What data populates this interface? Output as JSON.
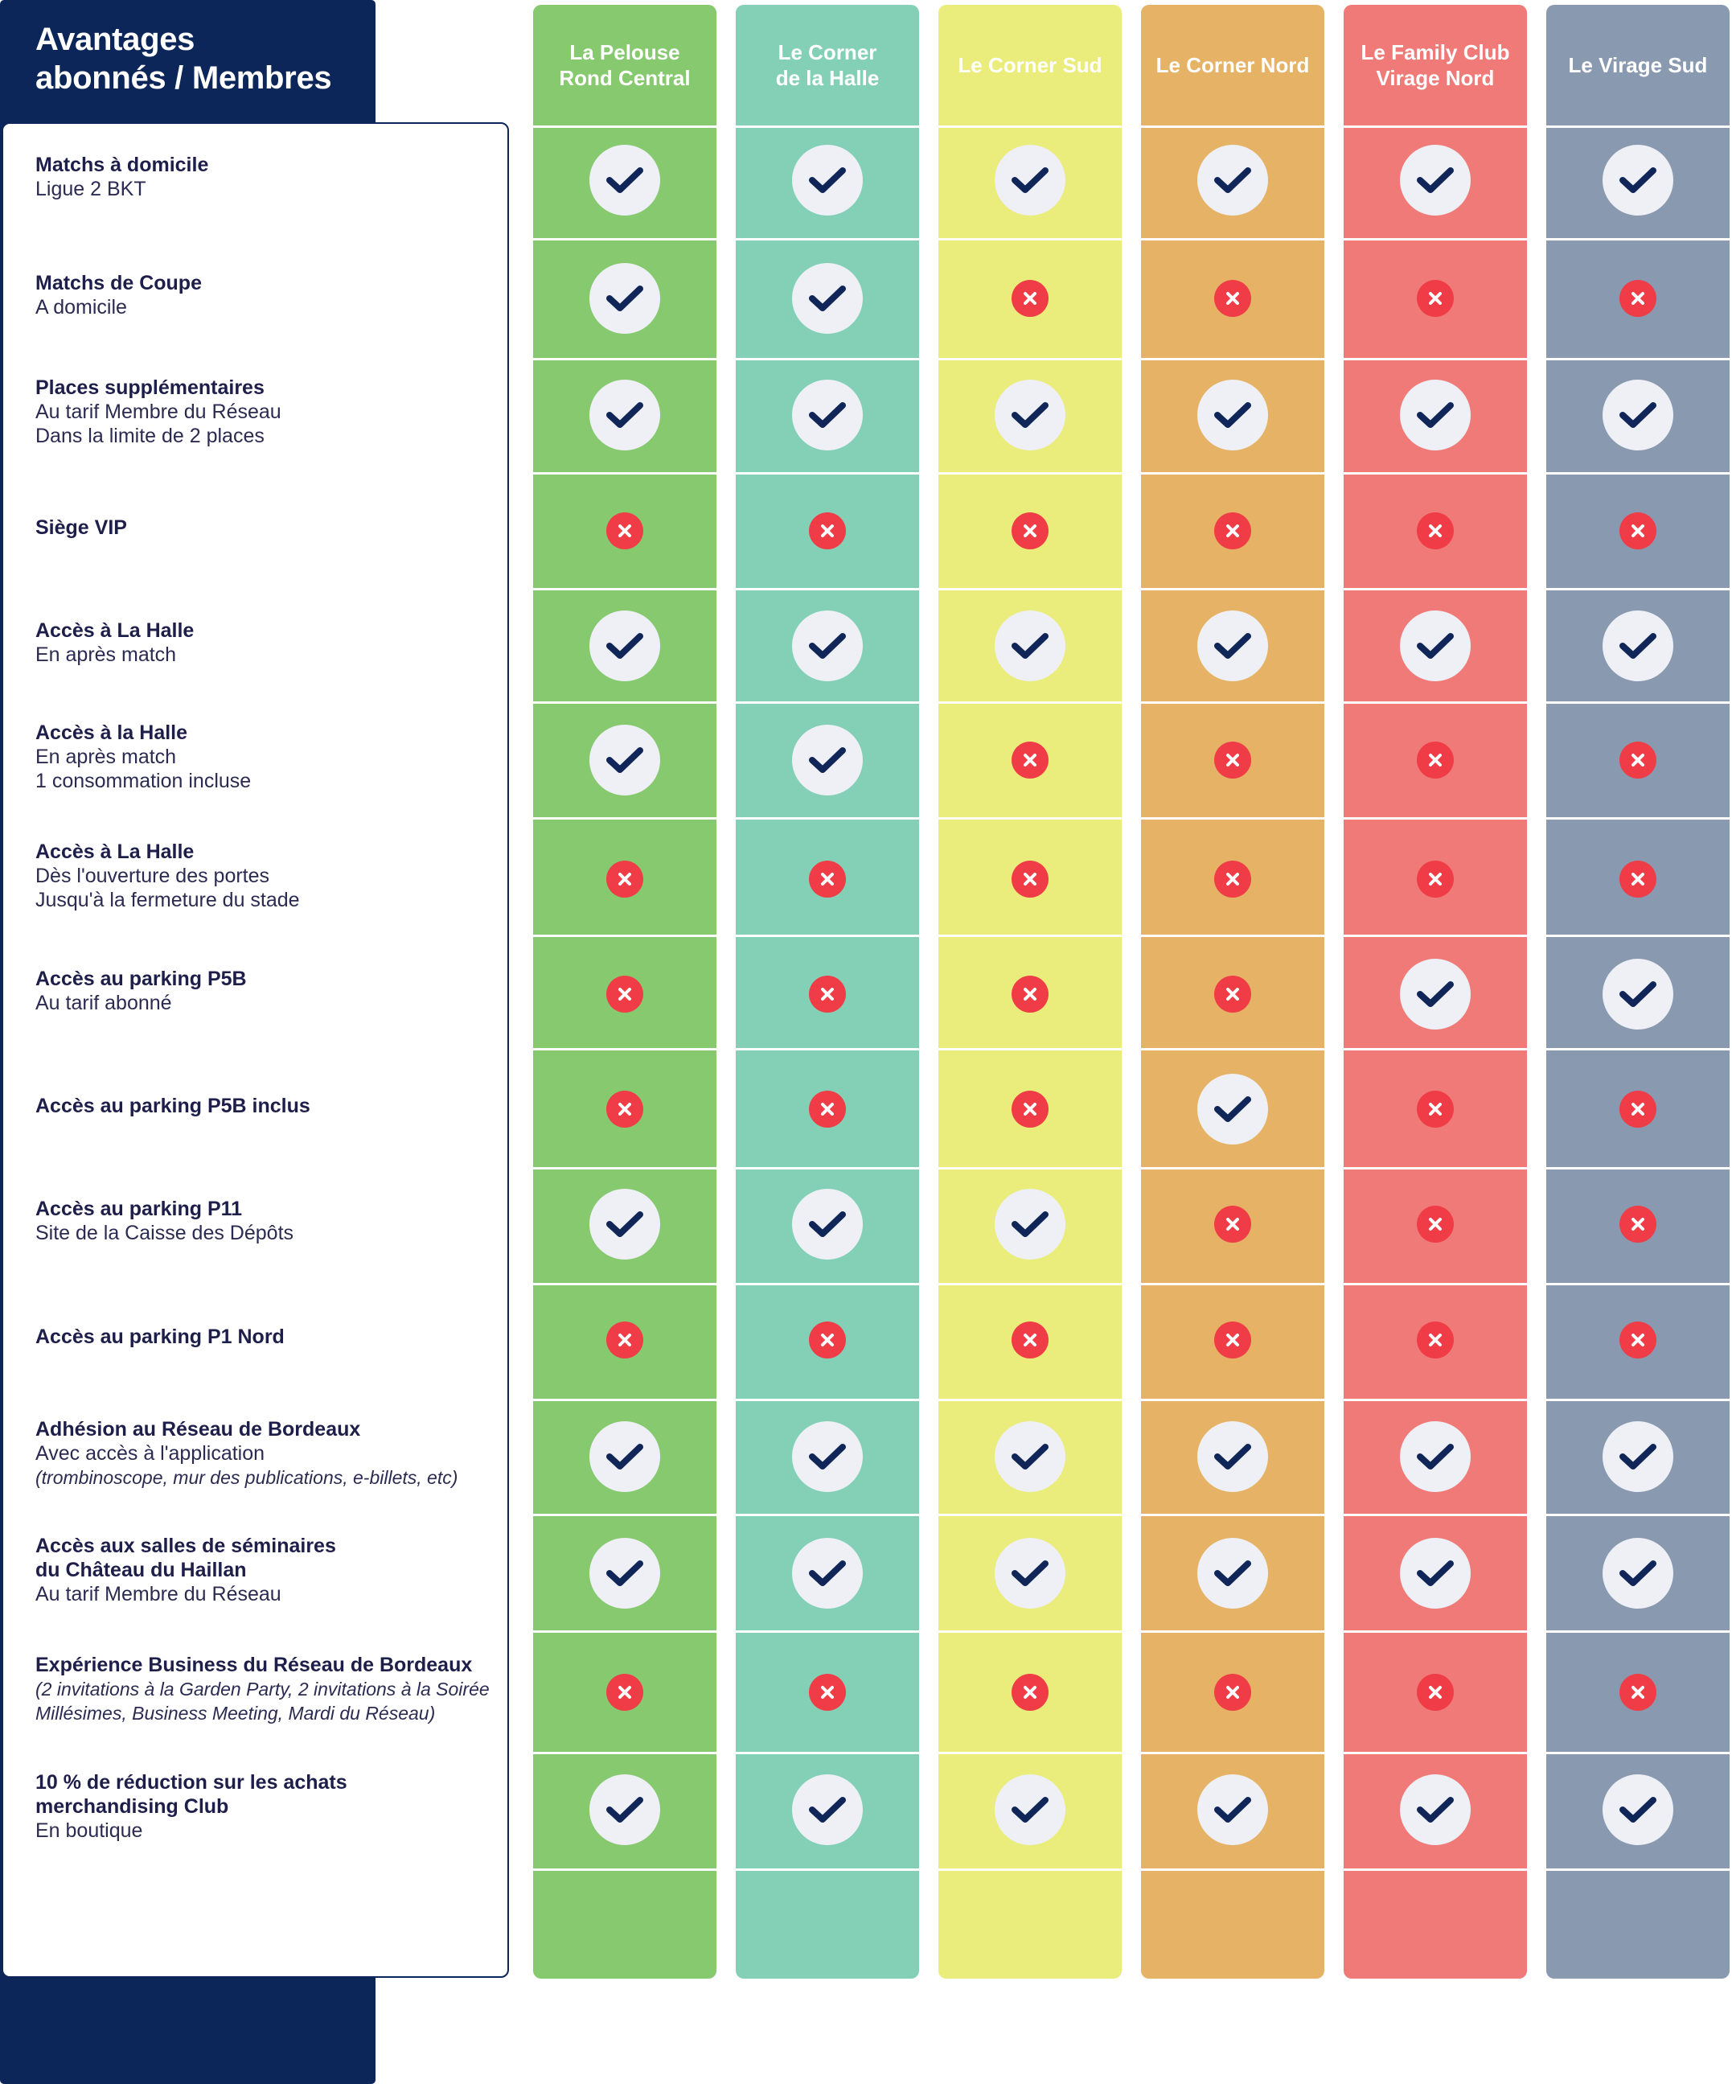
{
  "header": {
    "title": "Avantages\nabonnés / Membres"
  },
  "columns": [
    {
      "name": "La Pelouse\nRond Central",
      "color": "#86c96f"
    },
    {
      "name": "Le Corner\nde la Halle",
      "color": "#84d0b7"
    },
    {
      "name": "Le Corner Sud",
      "color": "#eaec7b"
    },
    {
      "name": "Le Corner Nord",
      "color": "#e6b265"
    },
    {
      "name": "Le Family Club\nVirage Nord",
      "color": "#f07a78"
    },
    {
      "name": "Le Virage Sud",
      "color": "#8999b0"
    }
  ],
  "colors": {
    "navy": "#0d2659",
    "check_mark": "#102659",
    "cross": "#ef3c46"
  },
  "rows": [
    {
      "title": "Matchs à domicile",
      "subtitle": "Ligue 2 BKT",
      "note": "",
      "values": [
        true,
        true,
        true,
        true,
        true,
        true
      ]
    },
    {
      "title": "Matchs de Coupe",
      "subtitle": "A domicile",
      "note": "",
      "values": [
        true,
        true,
        false,
        false,
        false,
        false
      ]
    },
    {
      "title": "Places supplémentaires",
      "subtitle": "Au tarif Membre du Réseau\nDans la limite de 2 places",
      "note": "",
      "values": [
        true,
        true,
        true,
        true,
        true,
        true
      ]
    },
    {
      "title": "Siège VIP",
      "subtitle": "",
      "note": "",
      "values": [
        false,
        false,
        false,
        false,
        false,
        false
      ]
    },
    {
      "title": "Accès à La Halle",
      "subtitle": "En après match",
      "note": "",
      "values": [
        true,
        true,
        true,
        true,
        true,
        true
      ]
    },
    {
      "title": "Accès à la Halle",
      "subtitle": "En après match\n1 consommation incluse",
      "note": "",
      "values": [
        true,
        true,
        false,
        false,
        false,
        false
      ]
    },
    {
      "title": "Accès à La Halle",
      "subtitle": "Dès l'ouverture des portes\nJusqu'à la fermeture du stade",
      "note": "",
      "values": [
        false,
        false,
        false,
        false,
        false,
        false
      ]
    },
    {
      "title": "Accès au parking P5B",
      "subtitle": "Au tarif abonné",
      "note": "",
      "values": [
        false,
        false,
        false,
        false,
        true,
        true
      ]
    },
    {
      "title": "Accès au parking P5B inclus",
      "subtitle": "",
      "note": "",
      "values": [
        false,
        false,
        false,
        true,
        false,
        false
      ]
    },
    {
      "title": "Accès au parking P11",
      "subtitle": "Site de la Caisse des Dépôts",
      "note": "",
      "values": [
        true,
        true,
        true,
        false,
        false,
        false
      ]
    },
    {
      "title": "Accès au parking P1 Nord",
      "subtitle": "",
      "note": "",
      "values": [
        false,
        false,
        false,
        false,
        false,
        false
      ]
    },
    {
      "title": "Adhésion au Réseau de Bordeaux",
      "subtitle": "Avec accès à l'application",
      "note": "(trombinoscope, mur des publications, e-billets, etc)",
      "values": [
        true,
        true,
        true,
        true,
        true,
        true
      ]
    },
    {
      "title": "Accès aux salles de séminaires\ndu Château du Haillan",
      "subtitle": "Au tarif Membre du Réseau",
      "note": "",
      "values": [
        true,
        true,
        true,
        true,
        true,
        true
      ]
    },
    {
      "title": "Expérience Business du Réseau de Bordeaux",
      "subtitle": "",
      "note": "(2 invitations à la Garden Party, 2 invitations à la Soirée\nMillésimes, Business Meeting, Mardi du Réseau)",
      "values": [
        false,
        false,
        false,
        false,
        false,
        false
      ]
    },
    {
      "title": "10 % de réduction sur les achats\nmerchandising Club",
      "subtitle": "En boutique",
      "note": "",
      "values": [
        true,
        true,
        true,
        true,
        true,
        true
      ]
    }
  ]
}
